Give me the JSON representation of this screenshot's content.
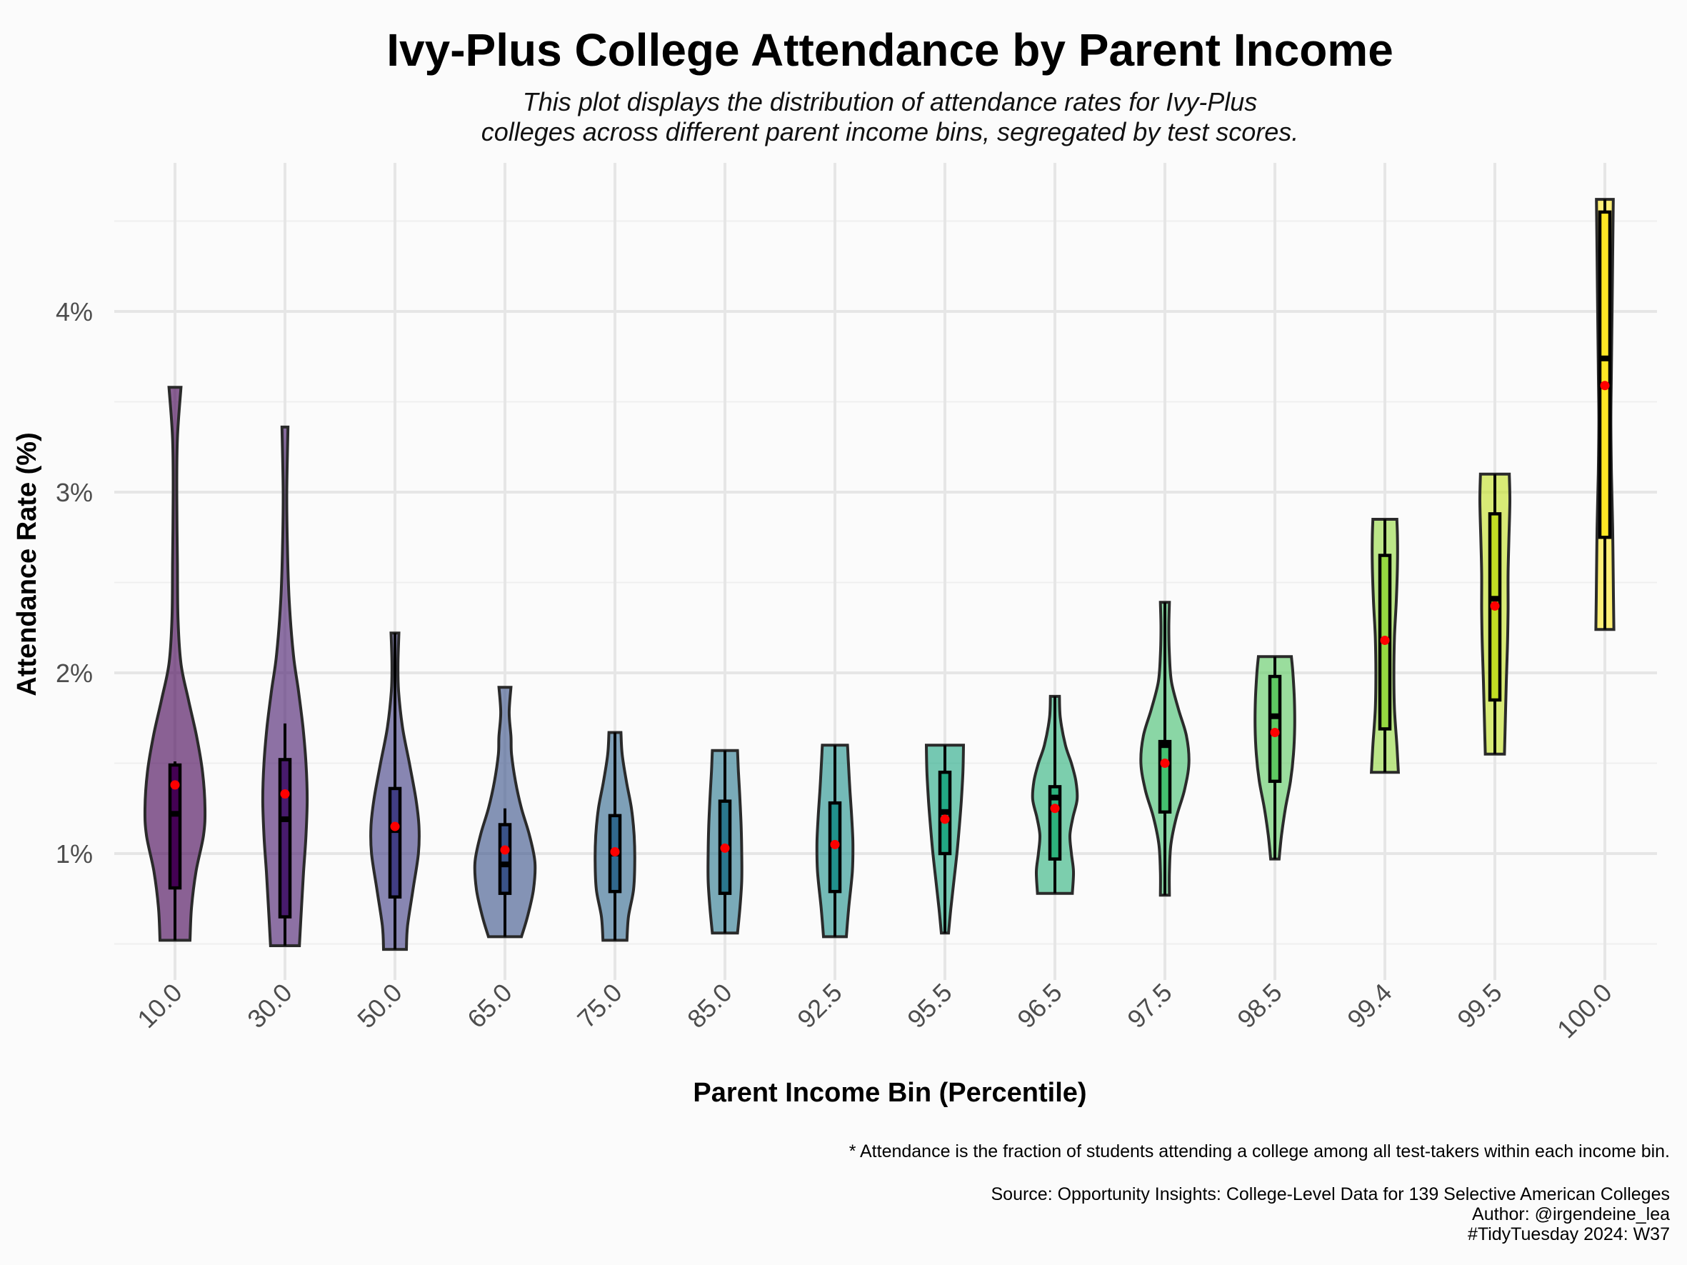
{
  "chart_data": {
    "type": "violin",
    "title": "Ivy-Plus College Attendance by Parent Income",
    "subtitle": [
      "This plot displays the distribution of attendance rates for Ivy-Plus",
      "colleges across different parent income bins, segregated by test scores."
    ],
    "xlabel": "Parent Income Bin (Percentile)",
    "ylabel": "Attendance Rate (%)",
    "ylim": [
      0.2,
      4.65
    ],
    "y_ticks": [
      1,
      2,
      3,
      4
    ],
    "y_tick_labels": [
      "1%",
      "2%",
      "3%",
      "4%"
    ],
    "grid": true,
    "legend": "none",
    "categories": [
      "10.0",
      "30.0",
      "50.0",
      "65.0",
      "75.0",
      "85.0",
      "92.5",
      "95.5",
      "96.5",
      "97.5",
      "98.5",
      "99.4",
      "99.5",
      "100.0"
    ],
    "colors": [
      "#440154",
      "#481b6d",
      "#413e85",
      "#3a5389",
      "#31688e",
      "#2a788e",
      "#21918c",
      "#22a884",
      "#2db27d",
      "#44bf70",
      "#5ec962",
      "#95d840",
      "#c2df23",
      "#fde725"
    ],
    "series": [
      {
        "min": 0.52,
        "max": 3.58,
        "q1": 0.81,
        "median": 1.22,
        "q3": 1.49,
        "mean": 1.38,
        "whisker_low": 0.52,
        "whisker_high": 1.51,
        "density": [
          [
            0.52,
            0.5
          ],
          [
            0.7,
            0.55
          ],
          [
            0.9,
            0.7
          ],
          [
            1.1,
            0.95
          ],
          [
            1.25,
            1.0
          ],
          [
            1.45,
            0.92
          ],
          [
            1.65,
            0.72
          ],
          [
            1.85,
            0.45
          ],
          [
            2.05,
            0.2
          ],
          [
            2.3,
            0.1
          ],
          [
            2.6,
            0.08
          ],
          [
            3.0,
            0.06
          ],
          [
            3.3,
            0.08
          ],
          [
            3.58,
            0.2
          ]
        ]
      },
      {
        "min": 0.49,
        "max": 3.36,
        "q1": 0.65,
        "median": 1.19,
        "q3": 1.52,
        "mean": 1.33,
        "whisker_low": 0.49,
        "whisker_high": 1.72,
        "density": [
          [
            0.49,
            0.48
          ],
          [
            0.7,
            0.55
          ],
          [
            0.9,
            0.62
          ],
          [
            1.1,
            0.7
          ],
          [
            1.3,
            0.74
          ],
          [
            1.5,
            0.7
          ],
          [
            1.7,
            0.6
          ],
          [
            1.9,
            0.45
          ],
          [
            2.1,
            0.28
          ],
          [
            2.4,
            0.14
          ],
          [
            2.7,
            0.08
          ],
          [
            3.0,
            0.06
          ],
          [
            3.36,
            0.1
          ]
        ]
      },
      {
        "min": 0.47,
        "max": 2.22,
        "q1": 0.76,
        "median": 1.13,
        "q3": 1.36,
        "mean": 1.15,
        "whisker_low": 0.47,
        "whisker_high": 2.22,
        "density": [
          [
            0.47,
            0.38
          ],
          [
            0.6,
            0.42
          ],
          [
            0.8,
            0.6
          ],
          [
            1.0,
            0.78
          ],
          [
            1.15,
            0.8
          ],
          [
            1.3,
            0.7
          ],
          [
            1.5,
            0.48
          ],
          [
            1.7,
            0.25
          ],
          [
            1.9,
            0.12
          ],
          [
            2.05,
            0.1
          ],
          [
            2.22,
            0.13
          ]
        ]
      },
      {
        "min": 0.54,
        "max": 1.92,
        "q1": 0.78,
        "median": 0.94,
        "q3": 1.16,
        "mean": 1.02,
        "whisker_low": 0.54,
        "whisker_high": 1.25,
        "density": [
          [
            0.54,
            0.55
          ],
          [
            0.65,
            0.75
          ],
          [
            0.8,
            0.95
          ],
          [
            0.95,
            1.0
          ],
          [
            1.1,
            0.82
          ],
          [
            1.25,
            0.55
          ],
          [
            1.4,
            0.35
          ],
          [
            1.55,
            0.22
          ],
          [
            1.65,
            0.2
          ],
          [
            1.78,
            0.14
          ],
          [
            1.92,
            0.2
          ]
        ]
      },
      {
        "min": 0.52,
        "max": 1.67,
        "q1": 0.79,
        "median": 1.0,
        "q3": 1.21,
        "mean": 1.01,
        "whisker_low": 0.52,
        "whisker_high": 1.67,
        "density": [
          [
            0.52,
            0.4
          ],
          [
            0.65,
            0.45
          ],
          [
            0.8,
            0.62
          ],
          [
            0.95,
            0.66
          ],
          [
            1.1,
            0.64
          ],
          [
            1.25,
            0.55
          ],
          [
            1.4,
            0.38
          ],
          [
            1.55,
            0.24
          ],
          [
            1.67,
            0.2
          ]
        ]
      },
      {
        "min": 0.56,
        "max": 1.57,
        "q1": 0.78,
        "median": 1.03,
        "q3": 1.29,
        "mean": 1.03,
        "whisker_low": 0.56,
        "whisker_high": 1.57,
        "density": [
          [
            0.56,
            0.42
          ],
          [
            0.7,
            0.5
          ],
          [
            0.85,
            0.56
          ],
          [
            1.0,
            0.56
          ],
          [
            1.15,
            0.54
          ],
          [
            1.3,
            0.5
          ],
          [
            1.45,
            0.45
          ],
          [
            1.57,
            0.42
          ]
        ]
      },
      {
        "min": 0.54,
        "max": 1.6,
        "q1": 0.79,
        "median": 1.05,
        "q3": 1.28,
        "mean": 1.05,
        "whisker_low": 0.54,
        "whisker_high": 1.6,
        "density": [
          [
            0.54,
            0.38
          ],
          [
            0.7,
            0.46
          ],
          [
            0.9,
            0.58
          ],
          [
            1.05,
            0.6
          ],
          [
            1.2,
            0.56
          ],
          [
            1.35,
            0.5
          ],
          [
            1.5,
            0.45
          ],
          [
            1.6,
            0.42
          ]
        ]
      },
      {
        "min": 0.56,
        "max": 1.6,
        "q1": 1.0,
        "median": 1.23,
        "q3": 1.45,
        "mean": 1.19,
        "whisker_low": 0.56,
        "whisker_high": 1.6,
        "density": [
          [
            0.56,
            0.12
          ],
          [
            0.7,
            0.2
          ],
          [
            0.85,
            0.3
          ],
          [
            1.0,
            0.4
          ],
          [
            1.15,
            0.48
          ],
          [
            1.3,
            0.55
          ],
          [
            1.45,
            0.6
          ],
          [
            1.6,
            0.62
          ]
        ]
      },
      {
        "min": 0.78,
        "max": 1.87,
        "q1": 0.97,
        "median": 1.31,
        "q3": 1.37,
        "mean": 1.25,
        "whisker_low": 0.78,
        "whisker_high": 1.87,
        "density": [
          [
            0.78,
            0.58
          ],
          [
            0.9,
            0.62
          ],
          [
            1.0,
            0.55
          ],
          [
            1.1,
            0.5
          ],
          [
            1.2,
            0.6
          ],
          [
            1.3,
            0.74
          ],
          [
            1.4,
            0.7
          ],
          [
            1.5,
            0.55
          ],
          [
            1.6,
            0.35
          ],
          [
            1.75,
            0.18
          ],
          [
            1.87,
            0.15
          ]
        ]
      },
      {
        "min": 0.77,
        "max": 2.39,
        "q1": 1.23,
        "median": 1.6,
        "q3": 1.62,
        "mean": 1.5,
        "whisker_low": 0.77,
        "whisker_high": 2.39,
        "density": [
          [
            0.77,
            0.15
          ],
          [
            0.9,
            0.15
          ],
          [
            1.05,
            0.2
          ],
          [
            1.2,
            0.38
          ],
          [
            1.35,
            0.65
          ],
          [
            1.5,
            0.8
          ],
          [
            1.65,
            0.72
          ],
          [
            1.8,
            0.45
          ],
          [
            1.95,
            0.22
          ],
          [
            2.1,
            0.15
          ],
          [
            2.25,
            0.13
          ],
          [
            2.39,
            0.15
          ]
        ]
      },
      {
        "min": 0.97,
        "max": 2.09,
        "q1": 1.4,
        "median": 1.76,
        "q3": 1.98,
        "mean": 1.67,
        "whisker_low": 0.97,
        "whisker_high": 2.09,
        "density": [
          [
            0.97,
            0.14
          ],
          [
            1.1,
            0.22
          ],
          [
            1.25,
            0.35
          ],
          [
            1.4,
            0.52
          ],
          [
            1.55,
            0.62
          ],
          [
            1.7,
            0.66
          ],
          [
            1.85,
            0.65
          ],
          [
            2.0,
            0.6
          ],
          [
            2.09,
            0.55
          ]
        ]
      },
      {
        "min": 1.45,
        "max": 2.85,
        "q1": 1.69,
        "median": 2.18,
        "q3": 2.65,
        "mean": 2.18,
        "whisker_low": 1.45,
        "whisker_high": 2.85,
        "density": [
          [
            1.45,
            0.45
          ],
          [
            1.6,
            0.4
          ],
          [
            1.8,
            0.32
          ],
          [
            2.0,
            0.3
          ],
          [
            2.2,
            0.32
          ],
          [
            2.4,
            0.38
          ],
          [
            2.6,
            0.42
          ],
          [
            2.75,
            0.42
          ],
          [
            2.85,
            0.4
          ]
        ]
      },
      {
        "min": 1.55,
        "max": 3.1,
        "q1": 1.85,
        "median": 2.41,
        "q3": 2.88,
        "mean": 2.37,
        "whisker_low": 1.55,
        "whisker_high": 3.1,
        "density": [
          [
            1.55,
            0.32
          ],
          [
            1.75,
            0.35
          ],
          [
            1.95,
            0.38
          ],
          [
            2.15,
            0.42
          ],
          [
            2.35,
            0.44
          ],
          [
            2.55,
            0.44
          ],
          [
            2.75,
            0.47
          ],
          [
            2.95,
            0.5
          ],
          [
            3.1,
            0.48
          ]
        ]
      },
      {
        "min": 2.24,
        "max": 4.62,
        "q1": 2.75,
        "median": 3.74,
        "q3": 4.55,
        "mean": 3.59,
        "whisker_low": 2.24,
        "whisker_high": 4.62,
        "density": [
          [
            2.24,
            0.3
          ],
          [
            2.5,
            0.28
          ],
          [
            2.8,
            0.26
          ],
          [
            3.1,
            0.22
          ],
          [
            3.4,
            0.2
          ],
          [
            3.7,
            0.22
          ],
          [
            4.0,
            0.24
          ],
          [
            4.3,
            0.26
          ],
          [
            4.62,
            0.28
          ]
        ]
      }
    ],
    "caption": [
      "* Attendance is the fraction of students attending a college among all test-takers within each income bin.",
      "Source: Opportunity Insights: College-Level Data for 139 Selective American Colleges",
      "Author: @irgendeine_lea",
      "#TidyTuesday 2024: W37"
    ]
  }
}
